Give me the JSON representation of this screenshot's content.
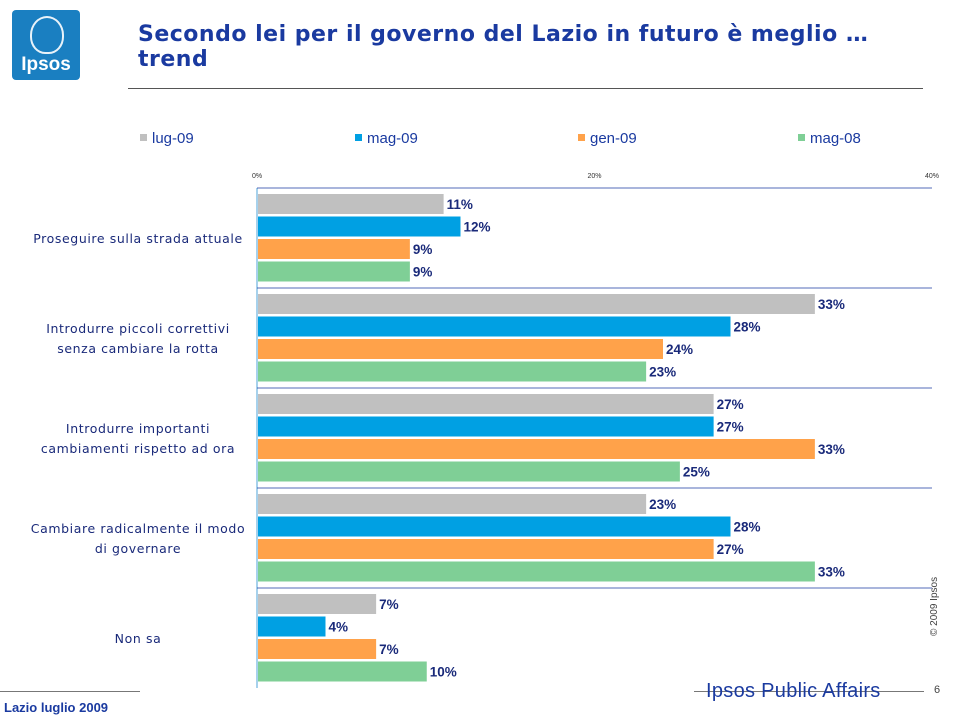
{
  "header": {
    "logo_text": "Ipsos",
    "title": "Secondo lei per il governo del Lazio in futuro è meglio … trend"
  },
  "footer": {
    "left": "Lazio luglio 2009",
    "brand": "Ipsos Public Affairs",
    "page": "6",
    "copyright": "© 2009 Ipsos"
  },
  "chart_data": {
    "type": "bar",
    "orientation": "horizontal",
    "title": "Secondo lei per il governo del Lazio in futuro è meglio … trend",
    "xlabel": "",
    "ylabel": "",
    "xlim": [
      0,
      40
    ],
    "x_ticks": [
      "0%",
      "20%",
      "40%"
    ],
    "legend": "top",
    "categories": [
      [
        "Proseguire sulla strada attuale"
      ],
      [
        "Introdurre piccoli correttivi",
        "senza cambiare la rotta"
      ],
      [
        "Introdurre importanti",
        "cambiamenti rispetto ad ora"
      ],
      [
        "Cambiare radicalmente il modo",
        "di governare"
      ],
      [
        "Non sa"
      ]
    ],
    "series": [
      {
        "name": "lug-09",
        "color": "#c0c0c0",
        "values": [
          11,
          33,
          27,
          23,
          7
        ]
      },
      {
        "name": "mag-09",
        "color": "#00a0e3",
        "values": [
          12,
          28,
          27,
          28,
          4
        ]
      },
      {
        "name": "gen-09",
        "color": "#ffa24a",
        "values": [
          9,
          24,
          33,
          27,
          7
        ]
      },
      {
        "name": "mag-08",
        "color": "#7fcf96",
        "values": [
          9,
          23,
          25,
          33,
          10
        ]
      }
    ]
  }
}
